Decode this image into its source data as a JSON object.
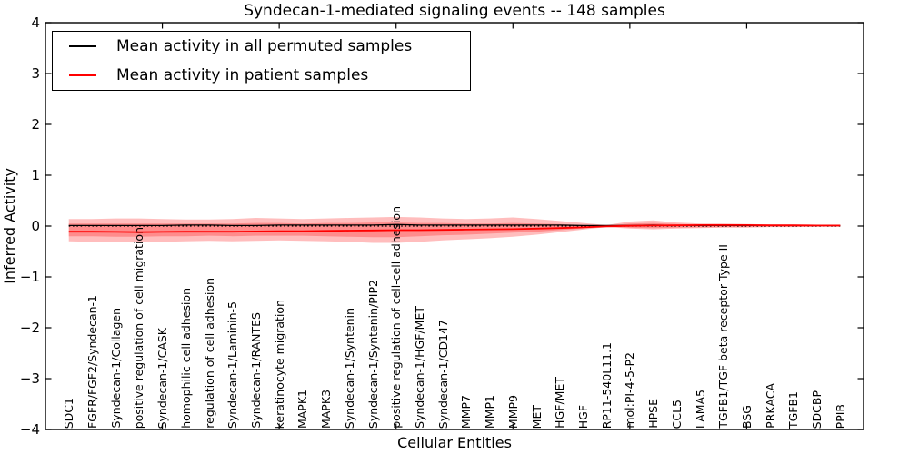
{
  "title": "Syndecan-1-mediated signaling events -- 148 samples",
  "axes": {
    "xlabel": "Cellular Entities",
    "ylabel": "Inferred Activity",
    "ytick_labels": [
      "4",
      "3",
      "2",
      "1",
      "0",
      "−1",
      "−2",
      "−3",
      "−4"
    ],
    "ytick_values": [
      4,
      3,
      2,
      1,
      0,
      -1,
      -2,
      -3,
      -4
    ],
    "xtick_units": [
      5,
      10,
      15,
      20,
      25,
      30
    ],
    "ylim": [
      -4,
      4
    ]
  },
  "legend": {
    "items": [
      {
        "label": "Mean activity in all permuted samples",
        "color": "#000000"
      },
      {
        "label": "Mean activity in patient samples",
        "color": "#ff0000"
      }
    ]
  },
  "colors": {
    "band_fill": "rgba(255,0,0,0.26)",
    "zero_line": "#000000",
    "frame": "#000000",
    "background": "#ffffff"
  },
  "chart_data": {
    "type": "line",
    "title": "Syndecan-1-mediated signaling events -- 148 samples",
    "xlabel": "Cellular Entities",
    "ylabel": "Inferred Activity",
    "ylim": [
      -4,
      4
    ],
    "grid": false,
    "legend_position": "upper left",
    "zero_line_style": "dotted",
    "categories": [
      "SDC1",
      "FGFR/FGF2/Syndecan-1",
      "Syndecan-1/Collagen",
      "positive regulation of cell migration",
      "Syndecan-1/CASK",
      "homophilic cell adhesion",
      "regulation of cell adhesion",
      "Syndecan-1/Laminin-5",
      "Syndecan-1/RANTES",
      "keratinocyte migration",
      "MAPK1",
      "MAPK3",
      "Syndecan-1/Syntenin",
      "Syndecan-1/Syntenin/PIP2",
      "positive regulation of cell-cell adhesion",
      "Syndecan-1/HGF/MET",
      "Syndecan-1/CD147",
      "MMP7",
      "MMP1",
      "MMP9",
      "MET",
      "HGF/MET",
      "HGF",
      "RP11-540L11.1",
      "mol:PI-4-5-P2",
      "HPSE",
      "CCL5",
      "LAMA5",
      "TGFB1/TGF beta receptor Type II",
      "BSG",
      "PRKACA",
      "TGFB1",
      "SDCBP",
      "PPIB"
    ],
    "series": [
      {
        "name": "Mean activity in all permuted samples",
        "color": "#000000",
        "values": [
          0.01,
          0.01,
          0.01,
          0.01,
          0.01,
          0.02,
          0.02,
          0.01,
          0.01,
          0.02,
          0.02,
          0.02,
          0.02,
          0.02,
          0.03,
          0.02,
          0.02,
          0.02,
          0.02,
          0.02,
          0.02,
          0.02,
          0.01,
          0.01,
          0.01,
          0.02,
          0.01,
          0.01,
          0.01,
          0.01,
          0.01,
          0.01,
          0.01,
          0.01
        ]
      },
      {
        "name": "Mean activity in patient samples",
        "color": "#ff0000",
        "values": [
          -0.11,
          -0.11,
          -0.115,
          -0.12,
          -0.115,
          -0.11,
          -0.11,
          -0.11,
          -0.105,
          -0.1,
          -0.1,
          -0.095,
          -0.09,
          -0.085,
          -0.08,
          -0.08,
          -0.075,
          -0.07,
          -0.065,
          -0.06,
          -0.05,
          -0.04,
          -0.025,
          -0.005,
          0.005,
          0.01,
          0.015,
          0.02,
          0.02,
          0.02,
          0.015,
          0.015,
          0.01,
          0.01
        ]
      }
    ],
    "bands": [
      {
        "name": "patient activity spread outer",
        "top": [
          0.14,
          0.14,
          0.15,
          0.15,
          0.14,
          0.13,
          0.13,
          0.14,
          0.16,
          0.15,
          0.14,
          0.15,
          0.16,
          0.17,
          0.18,
          0.17,
          0.15,
          0.14,
          0.15,
          0.17,
          0.14,
          0.1,
          0.06,
          0.02,
          0.09,
          0.11,
          0.07,
          0.05,
          0.05,
          0.04,
          0.03,
          0.03,
          0.02,
          0.02
        ],
        "bottom": [
          -0.3,
          -0.31,
          -0.31,
          -0.32,
          -0.31,
          -0.3,
          -0.29,
          -0.3,
          -0.29,
          -0.28,
          -0.29,
          -0.3,
          -0.31,
          -0.33,
          -0.33,
          -0.31,
          -0.28,
          -0.26,
          -0.24,
          -0.21,
          -0.17,
          -0.12,
          -0.07,
          -0.02,
          -0.05,
          -0.065,
          -0.05,
          -0.04,
          -0.03,
          -0.03,
          -0.02,
          -0.02,
          -0.015,
          -0.015
        ]
      },
      {
        "name": "patient activity spread inner",
        "top": [
          0.05,
          0.05,
          0.05,
          0.05,
          0.05,
          0.05,
          0.05,
          0.05,
          0.06,
          0.06,
          0.05,
          0.06,
          0.06,
          0.07,
          0.07,
          0.06,
          0.06,
          0.05,
          0.05,
          0.06,
          0.05,
          0.04,
          0.02,
          0.01,
          0.05,
          0.06,
          0.04,
          0.03,
          0.03,
          0.02,
          0.02,
          0.015,
          0.01,
          0.01
        ],
        "bottom": [
          -0.2,
          -0.2,
          -0.21,
          -0.21,
          -0.2,
          -0.2,
          -0.19,
          -0.2,
          -0.19,
          -0.19,
          -0.19,
          -0.2,
          -0.21,
          -0.22,
          -0.22,
          -0.2,
          -0.18,
          -0.17,
          -0.15,
          -0.13,
          -0.11,
          -0.08,
          -0.05,
          -0.01,
          -0.03,
          -0.04,
          -0.03,
          -0.025,
          -0.02,
          -0.02,
          -0.015,
          -0.015,
          -0.01,
          -0.01
        ]
      }
    ]
  }
}
